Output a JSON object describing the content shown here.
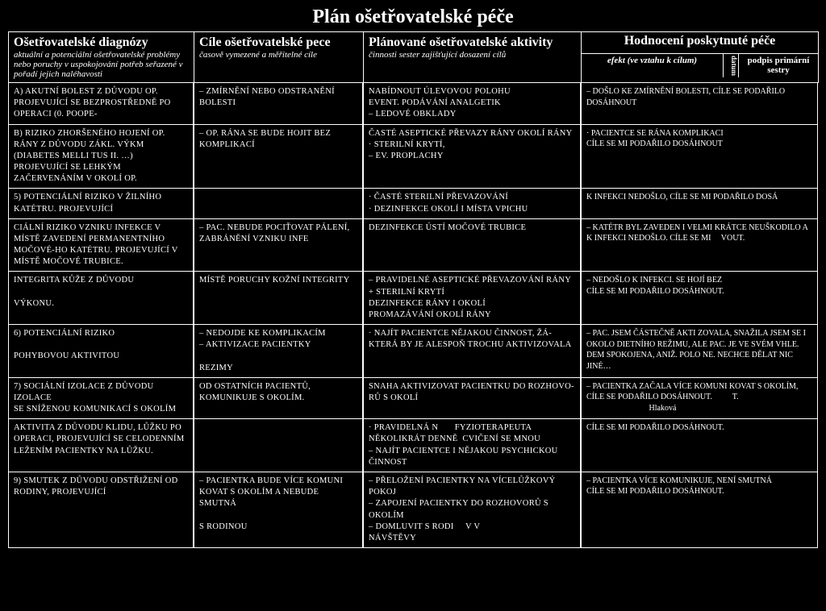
{
  "title": "Plán ošetřovatelské péče",
  "headers": {
    "col1_title": "Ošetřovatelské diagnózy",
    "col1_sub": "aktuální a potenciální ošetřovatelské problémy nebo poruchy v uspokojování potřeb seřazené v pořadí jejich naléhavosti",
    "col2_title": "Cíle ošetřovatelské pece",
    "col2_sub": "časově vymezené a měřitelné cíle",
    "col3_title": "Plánované ošetřovatelské aktivity",
    "col3_sub": "činnosti sester zajišťující dosazení cílů",
    "col4_title": "Hodnocení poskytnuté péče",
    "col4_efekt": "efekt (ve vztahu k cílum)",
    "col4_datum": "datum",
    "col4_podpis": "podpis primární sestry"
  },
  "rows": [
    {
      "dx": "A) AKUTNÍ BOLEST Z DŮVODU OP. PROJEVUJÍCÍ SE BEZPROSTŘEDNĚ PO OPERACI (0. POOPE-",
      "cile": "– ZMÍRNĚNÍ NEBO ODSTRANĚNÍ BOLESTI",
      "akt": "NABÍDNOUT ÚLEVOVOU POLOHU\nEVENT. PODÁVÁNÍ ANALGETIK\n– LEDOVÉ OBKLADY",
      "hod": "– DOŠLO KE ZMÍRNĚNÍ BOLESTI, CÍLE SE PODAŘILO DOSÁHNOUT"
    },
    {
      "dx": "B) RIZIKO ZHORŠENÉHO HOJENÍ OP. RÁNY Z DŮVODU ZÁKL. VÝKM (DIABETES MELLI TUS II. …) PROJEVUJÍCÍ SE LEHKÝM ZAČERVENÁNÍM V OKOLÍ OP.",
      "cile": "– OP. RÁNA SE BUDE HOJIT BEZ KOMPLIKACÍ",
      "akt": "ČASTÉ ASEPTICKÉ PŘEVAZY RÁNY OKOLÍ RÁNY\n· STERILNÍ KRYTÍ,\n– EV. PROPLACHY",
      "hod": "· PACIENTCE SE RÁNA KOMPLIKACI\nCÍLE SE MI PODAŘILO DOSÁHNOUT"
    },
    {
      "dx": "5) POTENCIÁLNÍ RIZIKO V ŽILNÍHO KATÉTRU. PROJEVUJÍCÍ",
      "cile": "",
      "akt": "· ČASTÉ STERILNÍ PŘEVAZOVÁNÍ\n· DEZINFEKCE OKOLÍ I MÍSTA VPICHU",
      "hod": "K INFEKCI NEDOŠLO, CÍLE SE MI PODAŘILO DOSÁ"
    },
    {
      "dx": "CIÁLNÍ RIZIKO VZNIKU INFEKCE V MÍSTĚ ZAVEDENÍ PERMANENTNÍHO MOČOVÉ-HO KATÉTRU. PROJEVUJÍCÍ V MÍSTĚ MOČOVÉ TRUBICE.",
      "cile": "– PAC. NEBUDE POCIŤOVAT PÁLENÍ, ZABRÁNĚNÍ VZNIKU INFE",
      "akt": "DEZINFEKCE ÚSTÍ MOČOVÉ TRUBICE",
      "hod": "– KATÉTR BYL ZAVEDEN I VELMI KRÁTCE NEUŠKODILO A K INFEKCI NEDOŠLO. CÍLE SE MI     VOUT."
    },
    {
      "dx": "INTEGRITA KŮŽE Z DŮVODU\n\nVÝKONU.",
      "cile": "MÍSTĚ PORUCHY KOŽNÍ INTEGRITY",
      "akt": "– PRAVIDELNÉ ASEPTICKÉ PŘEVAZOVÁNÍ RÁNY + STERILNÍ KRYTÍ\nDEZINFEKCE RÁNY I OKOLÍ\nPROMAZÁVÁNÍ OKOLÍ RÁNY",
      "hod": "– NEDOŠLO K INFEKCI. SE HOJÍ BEZ\nCÍLE SE MI PODAŘILO DOSÁHNOUT."
    },
    {
      "dx": "6) POTENCIÁLNÍ RIZIKO\n\nPOHYBOVOU AKTIVITOU",
      "cile": "– NEDOJDE KE KOMPLIKACÍM\n– AKTIVIZACE PACIENTKY\n\nREZIMY",
      "akt": "· NAJÍT PACIENTCE NĚJAKOU ČINNOST, ŽÁ-KTERÁ BY JE ALESPOŇ TROCHU AKTIVIZOVALA",
      "hod": "– PAC. JSEM ČÁSTEČNĚ AKTI ZOVALA, SNAŽILA JSEM SE I OKOLO DIETNÍHO REŽIMU, ALE PAC. JE VE SVÉM VHLE. DEM SPOKOJENA, ANIŽ. POLO NE. NECHCE DĚLAT NIC JINÉ…"
    },
    {
      "dx": "7) SOCIÁLNÍ IZOLACE Z DŮVODU IZOLACE\nSE SNÍŽENOU KOMUNIKACÍ S OKOLÍM",
      "cile": "OD OSTATNÍCH PACIENTŮ, KOMUNIKUJE S OKOLÍM.",
      "akt": "SNAHA AKTIVIZOVAT PACIENTKU DO ROZHOVO-RŮ S OKOLÍ",
      "hod": "– PACIENTKA ZAČALA VÍCE KOMUNI KOVAT S OKOLÍM, CÍLE SE PODAŘILO DOSÁHNOUT.          T.\n                               Hlaková"
    },
    {
      "dx": "AKTIVITA Z DŮVODU KLIDU, LŮŽKU PO OPERACI, PROJEVUJÍCÍ SE CELODENNÍM LEŽENÍM PACIENTKY NA LŮŽKU.",
      "cile": "",
      "akt": "· PRAVIDELNÁ N       FYZIOTERAPEUTA NĚKOLIKRÁT DENNĚ  CVIČENÍ SE MNOU\n– NAJÍT PACIENTCE I NĚJAKOU PSYCHICKOU ČINNOST",
      "hod": "CÍLE SE MI PODAŘILO DOSÁHNOUT."
    },
    {
      "dx": "9) SMUTEK Z DŮVODU ODSTŘIŽENÍ OD RODINY, PROJEVUJÍCÍ",
      "cile": "– PACIENTKA BUDE VÍCE KOMUNI KOVAT S OKOLÍM A NEBUDE SMUTNÁ\n\nS RODINOU",
      "akt": "– PŘELOŽENÍ PACIENTKY NA VÍCELŮŽKOVÝ POKOJ\n– ZAPOJENÍ PACIENTKY DO ROZHOVORŮ S OKOLÍM\n– DOMLUVIT S RODI     V V\nNÁVŠTĚVY",
      "hod": "– PACIENTKA VÍCE KOMUNIKUJE, NENÍ SMUTNÁ\nCÍLE SE MI PODAŘILO DOSÁHNOUT."
    }
  ]
}
